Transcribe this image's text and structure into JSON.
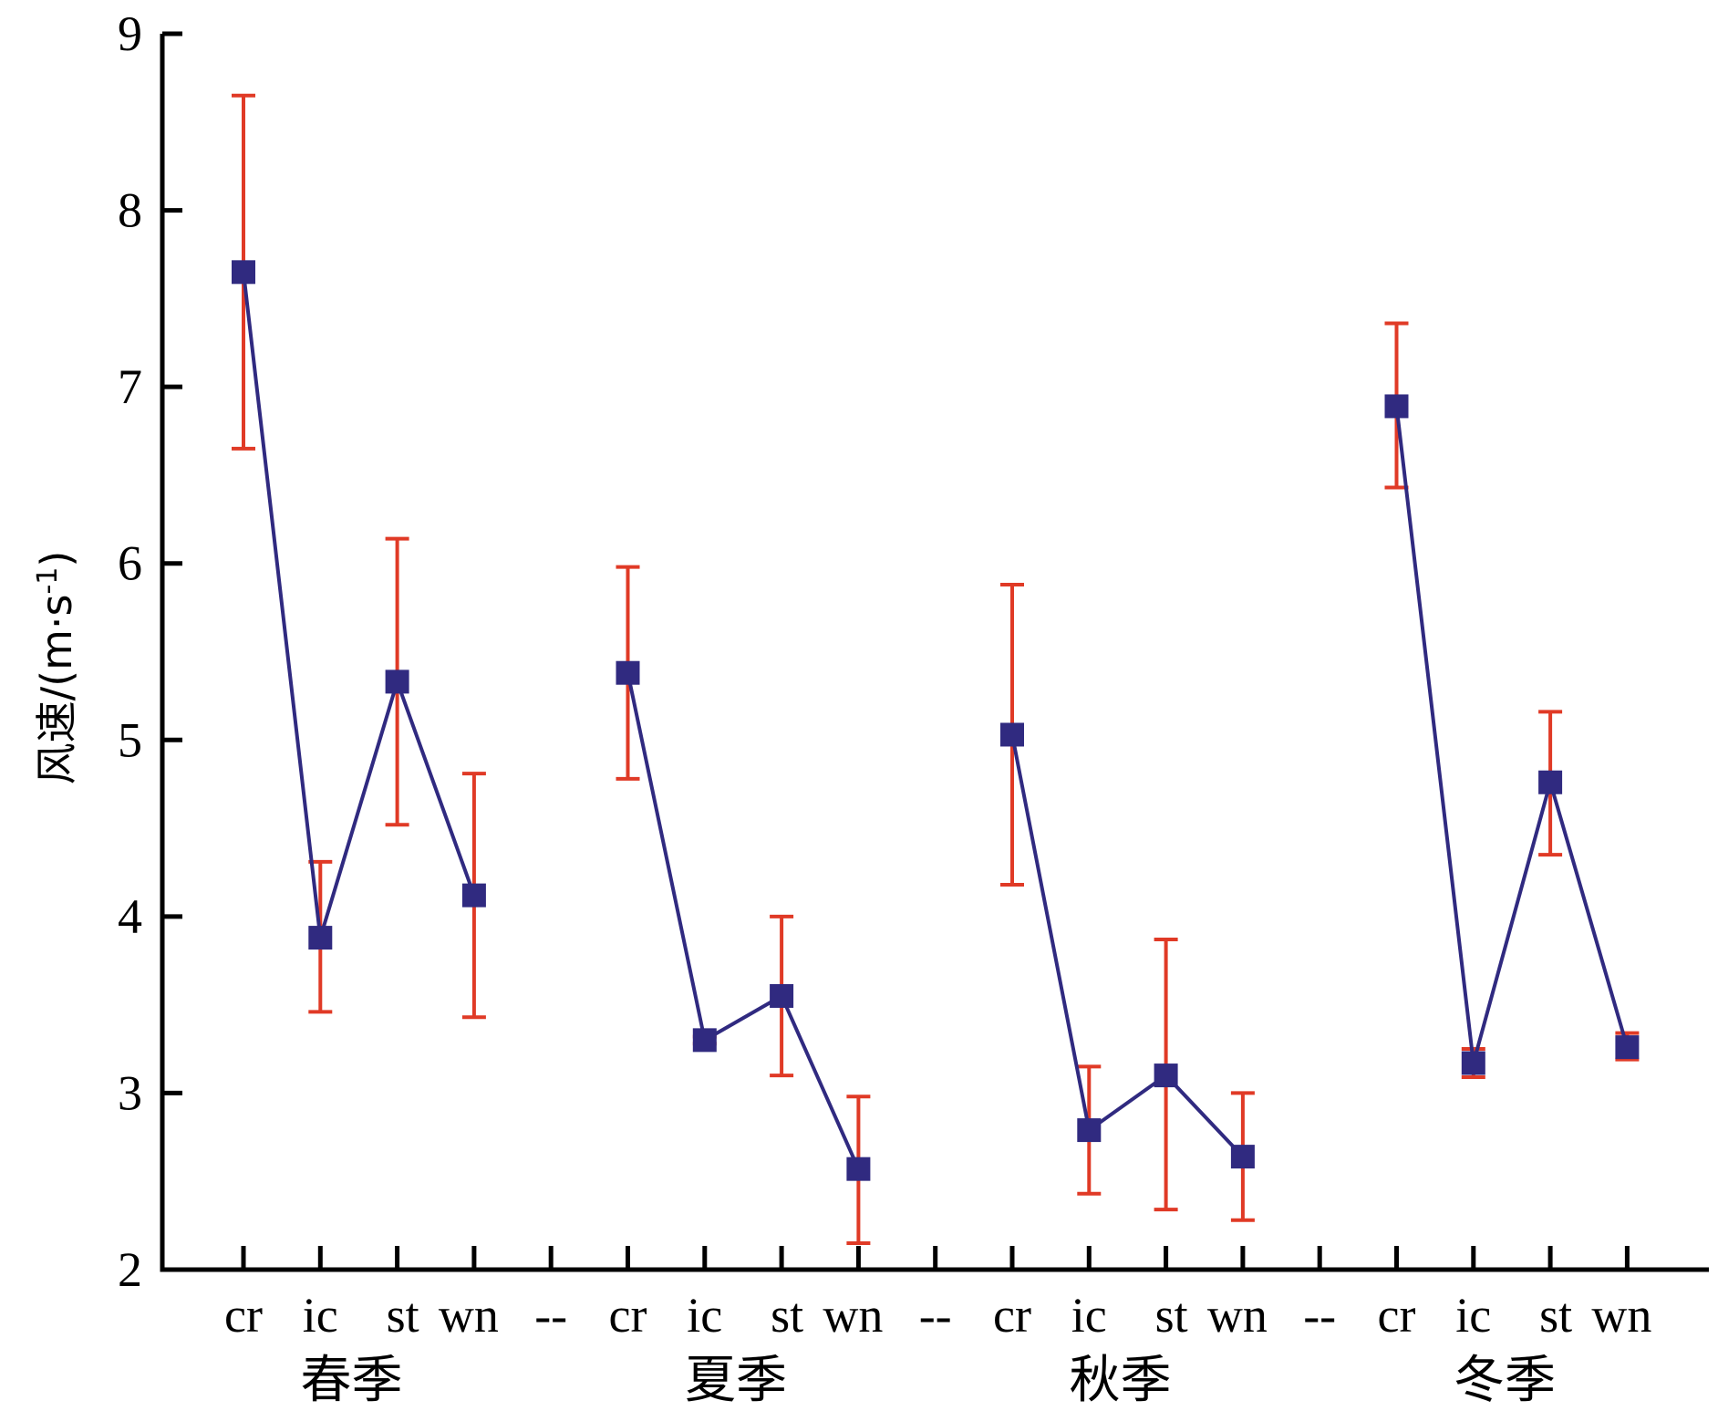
{
  "chart_data": {
    "type": "line",
    "xlabel": "",
    "ylabel_main": "风速/(m·s",
    "ylabel_sup": "-1",
    "ylabel_close": ")",
    "ylim": [
      2,
      9
    ],
    "yticks": [
      "2",
      "3",
      "4",
      "5",
      "6",
      "7",
      "8",
      "9"
    ],
    "grid": false,
    "categories": [
      "cr",
      "ic",
      "st",
      "wn",
      "--",
      "cr",
      "ic",
      "st",
      "wn",
      "--",
      "cr",
      "ic",
      "st",
      "wn",
      "--",
      "cr",
      "ic",
      "st",
      "wn"
    ],
    "groups": [
      "春季",
      "夏季",
      "秋季",
      "冬季"
    ],
    "series": [
      {
        "values": [
          7.65,
          3.88,
          5.33,
          4.12,
          null,
          5.38,
          3.3,
          3.55,
          2.57,
          null,
          5.03,
          2.79,
          3.1,
          2.64,
          null,
          6.89,
          3.17,
          4.76,
          3.26
        ],
        "err_low": [
          6.65,
          3.46,
          4.52,
          3.43,
          null,
          4.78,
          3.28,
          3.1,
          2.15,
          null,
          4.18,
          2.43,
          2.34,
          2.28,
          null,
          6.43,
          3.09,
          4.35,
          3.19
        ],
        "err_high": [
          8.65,
          4.31,
          6.14,
          4.81,
          null,
          5.98,
          3.32,
          4.0,
          2.98,
          null,
          5.88,
          3.15,
          3.87,
          3.0,
          null,
          7.36,
          3.25,
          5.16,
          3.34
        ]
      }
    ],
    "colors": {
      "line": "#302a80",
      "marker": "#302a80",
      "errorbar": "#e03a26",
      "axis": "#000000"
    }
  }
}
